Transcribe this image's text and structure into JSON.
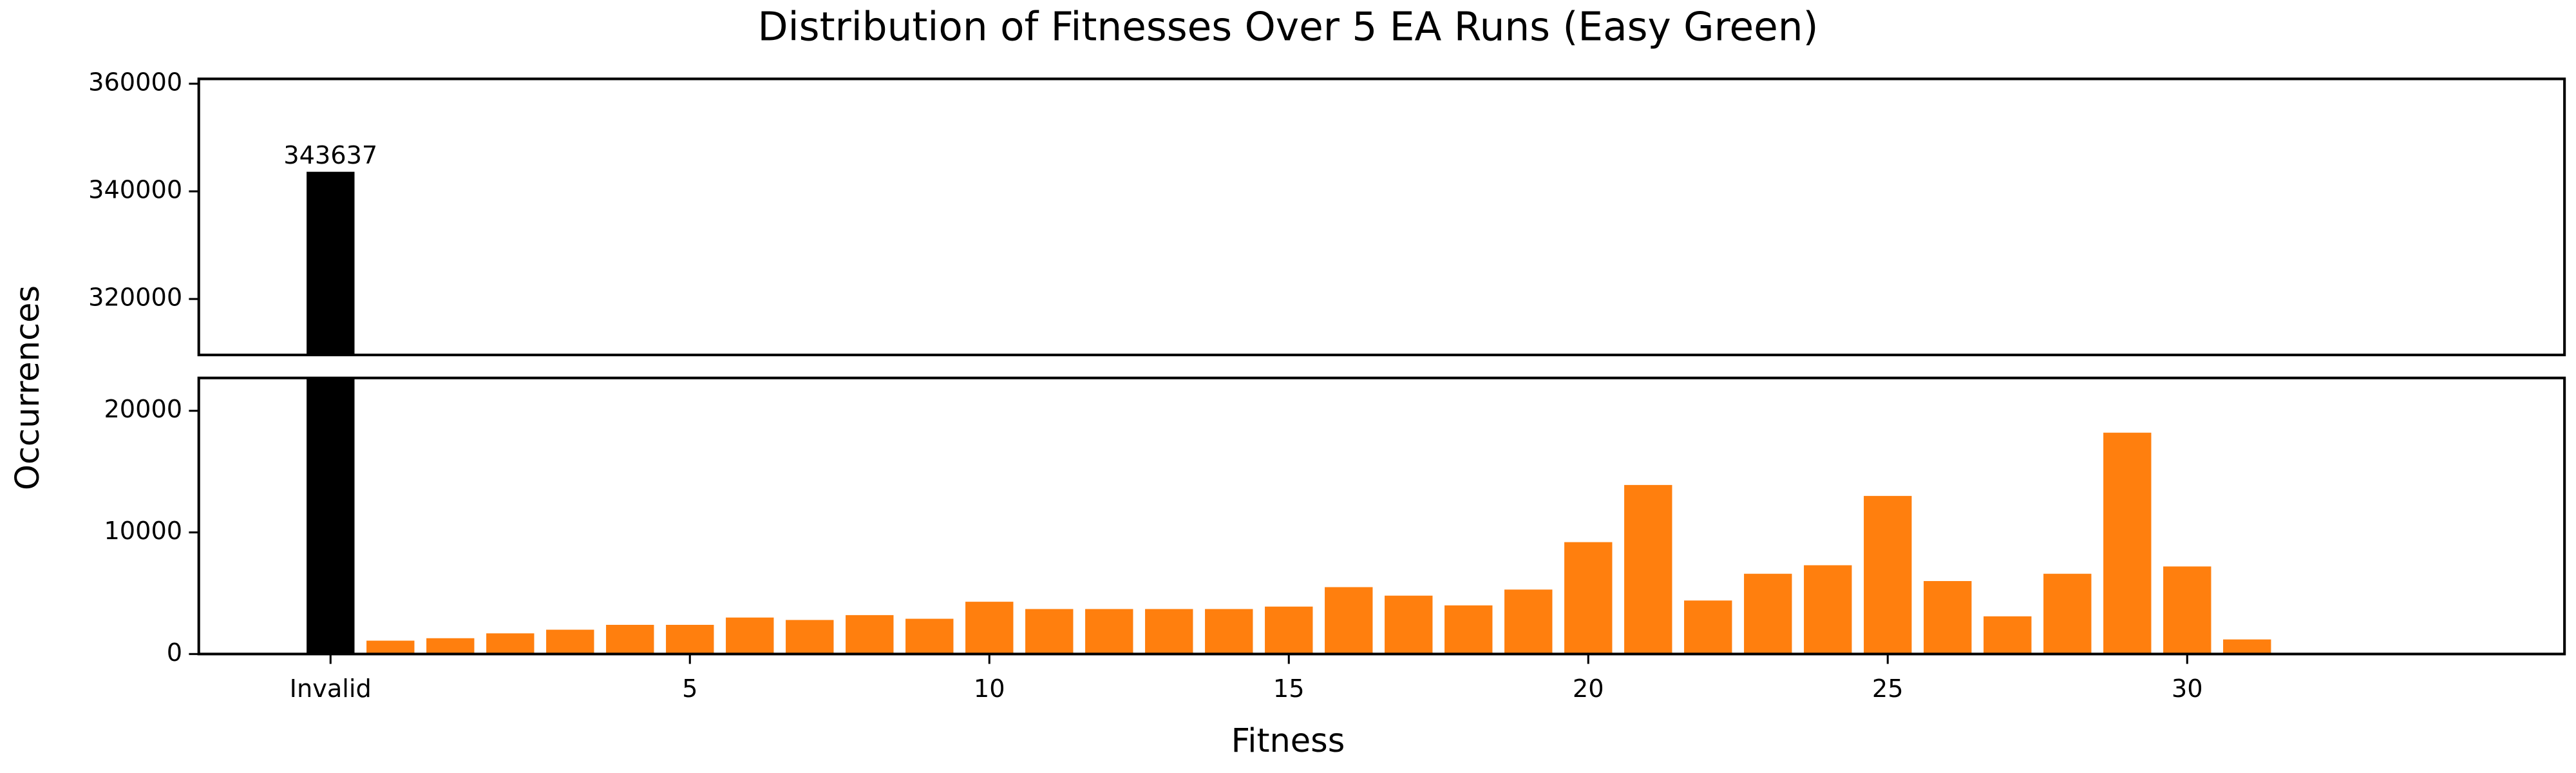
{
  "chart_data": {
    "type": "bar",
    "title": "Distribution of Fitnesses Over 5 EA Runs (Easy Green)",
    "xlabel": "Fitness",
    "ylabel": "Occurrences",
    "x": [
      -1,
      0,
      1,
      2,
      3,
      4,
      5,
      6,
      7,
      8,
      9,
      10,
      11,
      12,
      13,
      14,
      15,
      16,
      17,
      18,
      19,
      20,
      21,
      22,
      23,
      24,
      25,
      26,
      27,
      28,
      29,
      30,
      31
    ],
    "values": [
      343637,
      1100,
      1300,
      1700,
      2000,
      2400,
      2400,
      3000,
      2800,
      3200,
      2900,
      4300,
      3700,
      3700,
      3700,
      3700,
      3900,
      5500,
      4800,
      4000,
      5300,
      9200,
      13900,
      4400,
      6600,
      7300,
      13000,
      6000,
      3100,
      6600,
      18200,
      7200,
      1200
    ],
    "colors": [
      "#000000",
      "#ff7f0e",
      "#ff7f0e",
      "#ff7f0e",
      "#ff7f0e",
      "#ff7f0e",
      "#ff7f0e",
      "#ff7f0e",
      "#ff7f0e",
      "#ff7f0e",
      "#ff7f0e",
      "#ff7f0e",
      "#ff7f0e",
      "#ff7f0e",
      "#ff7f0e",
      "#ff7f0e",
      "#ff7f0e",
      "#ff7f0e",
      "#ff7f0e",
      "#ff7f0e",
      "#ff7f0e",
      "#ff7f0e",
      "#ff7f0e",
      "#ff7f0e",
      "#ff7f0e",
      "#ff7f0e",
      "#ff7f0e",
      "#ff7f0e",
      "#ff7f0e",
      "#ff7f0e",
      "#ff7f0e",
      "#ff7f0e",
      "#ff7f0e"
    ],
    "xlim": [
      -3.2,
      36.3
    ],
    "xticks": [
      {
        "value": -1,
        "label": "Invalid"
      },
      5,
      10,
      15,
      20,
      25,
      30
    ],
    "panels": [
      {
        "ylim": [
          309600,
          360900
        ],
        "yticks": [
          320000,
          340000,
          360000
        ]
      },
      {
        "ylim": [
          0,
          22700
        ],
        "yticks": [
          0,
          10000,
          20000
        ]
      }
    ]
  }
}
